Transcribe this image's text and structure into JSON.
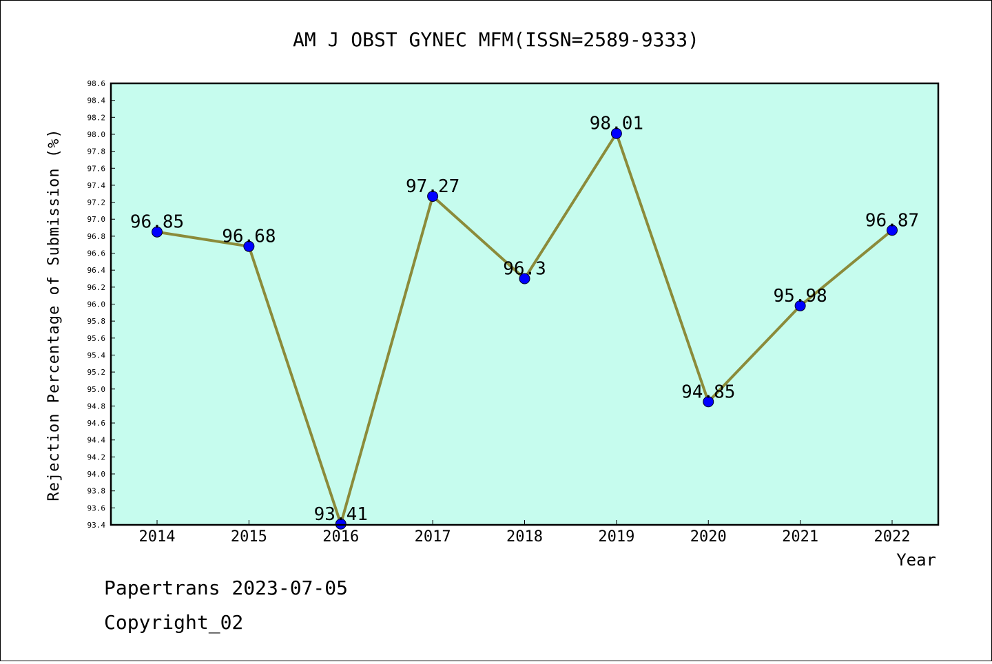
{
  "chart_data": {
    "type": "line",
    "title": "AM J OBST GYNEC MFM(ISSN=2589-9333)",
    "xlabel": "Year",
    "ylabel": "Rejection Percentage of Submission (%)",
    "x": [
      "2014",
      "2015",
      "2016",
      "2017",
      "2018",
      "2019",
      "2020",
      "2021",
      "2022"
    ],
    "series": [
      {
        "values": [
          96.85,
          96.68,
          93.41,
          97.27,
          96.3,
          98.01,
          94.85,
          95.98,
          96.87
        ],
        "labels": [
          "96.85",
          "96.68",
          "93.41",
          "97.27",
          "96.3",
          "98.01",
          "94.85",
          "95.98",
          "96.87"
        ]
      }
    ],
    "ylim": [
      93.4,
      98.6
    ],
    "yticks": [
      "93.4",
      "93.6",
      "93.8",
      "94.0",
      "94.2",
      "94.4",
      "94.6",
      "94.8",
      "95.0",
      "95.2",
      "95.4",
      "95.6",
      "95.8",
      "96.0",
      "96.2",
      "96.4",
      "96.6",
      "96.8",
      "97.0",
      "97.2",
      "97.4",
      "97.6",
      "97.8",
      "98.0",
      "98.2",
      "98.4",
      "98.6"
    ],
    "grid": false,
    "colors": {
      "plot_background": "#c6fcee",
      "line": "#8b8b3a",
      "marker": "#0000ff"
    }
  },
  "footer": {
    "line1": "Papertrans 2023-07-05",
    "line2": "Copyright_02"
  }
}
